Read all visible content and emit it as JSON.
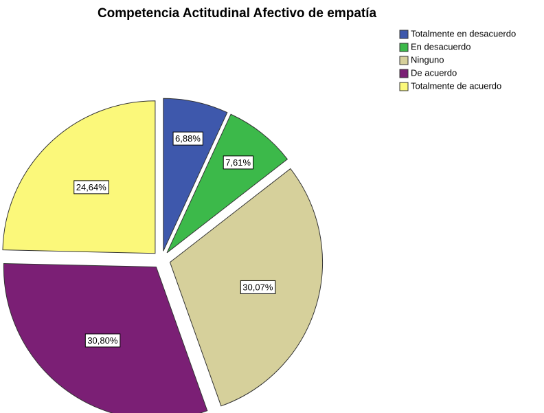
{
  "chart_data": {
    "type": "pie",
    "title": "Competencia Actitudinal Afectivo de empatía",
    "categories": [
      "Totalmente en desacuerdo",
      "En desacuerdo",
      "Ninguno",
      "De acuerdo",
      "Totalmente de acuerdo"
    ],
    "values": [
      6.88,
      7.61,
      30.07,
      30.8,
      24.64
    ],
    "value_labels": [
      "6,88%",
      "7,61%",
      "30,07%",
      "30,80%",
      "24,64%"
    ],
    "colors": [
      "#3e58ac",
      "#3cb94a",
      "#d6d09b",
      "#7b1f75",
      "#fbf87a"
    ],
    "legend": "top-right"
  }
}
